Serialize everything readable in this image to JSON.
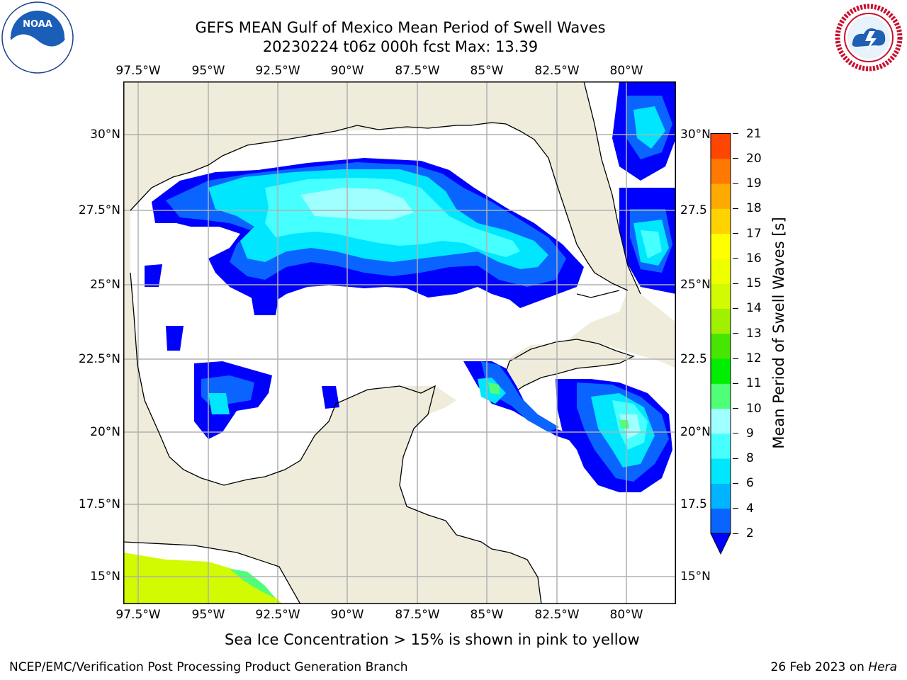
{
  "header": {
    "title_line1": "GEFS MEAN Gulf of Mexico Mean Period of Swell Waves",
    "title_line2": "20230224 t06z 000h fcst   Max: 13.39"
  },
  "map": {
    "land_color": "#efecdc",
    "ocean_color": "#ffffff",
    "grid_color": "#b0b0b0",
    "lon_labels": [
      "97.5°W",
      "95°W",
      "92.5°W",
      "90°W",
      "87.5°W",
      "85°W",
      "82.5°W",
      "80°W"
    ],
    "lat_labels_left": [
      "30°N",
      "27.5°N",
      "25°N",
      "22.5°N",
      "20°N",
      "17.5°N",
      "15°N"
    ],
    "lat_labels_right": [
      "30°N",
      "27.5",
      "25°N",
      "22.5",
      "20°N",
      "17.5",
      "15°N"
    ]
  },
  "colorbar": {
    "title": "Mean Period of Swell Waves [s]",
    "ticks": [
      "2",
      "4",
      "6",
      "8",
      "9",
      "10",
      "11",
      "12",
      "13",
      "14",
      "15",
      "16",
      "17",
      "18",
      "19",
      "20",
      "21"
    ],
    "colors": [
      "#0a64ff",
      "#00b4ff",
      "#00e6ff",
      "#46ffff",
      "#a0ffff",
      "#50ff78",
      "#00ee00",
      "#46e600",
      "#a0f000",
      "#d2fa00",
      "#f0ff00",
      "#ffff00",
      "#ffd200",
      "#ffaa00",
      "#ff7800",
      "#ff4600",
      "#ff1e00"
    ],
    "extend_color": "#0000ff"
  },
  "footnote": "Sea Ice Concentration > 15% is shown in pink to yellow",
  "footer": {
    "left": "NCEP/EMC/Verification Post Processing Product Generation Branch",
    "right_date": "26 Feb 2023 on ",
    "right_machine": "Hera"
  },
  "logos": {
    "noaa_text": "NOAA",
    "nws_text": "NATIONAL WEATHER SERVICE"
  }
}
